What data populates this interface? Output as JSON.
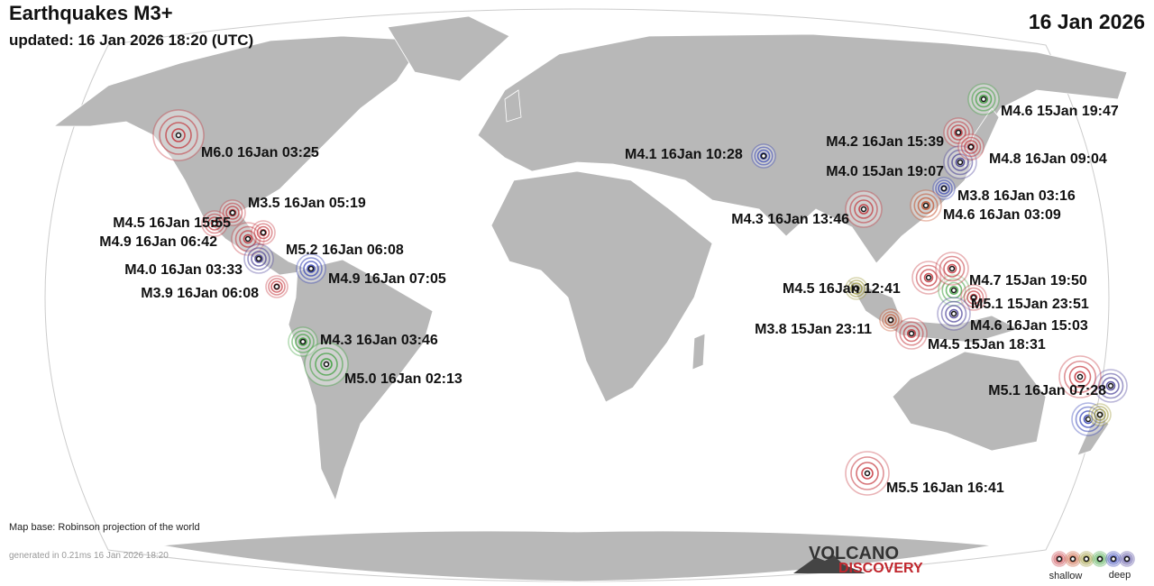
{
  "header": {
    "title": "Earthquakes M3+",
    "updated": "updated: 16 Jan 2026 18:20 (UTC)",
    "date": "16 Jan 2026"
  },
  "quakes": [
    {
      "label": "M6.0 16Jan 03:25",
      "color": "#c0262d"
    },
    {
      "label": "M3.5 16Jan 05:19",
      "color": "#c0262d"
    },
    {
      "label": "M4.5 16Jan 15:55",
      "color": "#c0262d"
    },
    {
      "label": "M4.9 16Jan 06:42",
      "color": "#c0262d"
    },
    {
      "label": "M5.2 16Jan 06:08",
      "color": "#3a2f8f"
    },
    {
      "label": "M4.9 16Jan 07:05",
      "color": "#1f2fb0"
    },
    {
      "label": "M4.0 16Jan 03:33",
      "color": "#c0262d"
    },
    {
      "label": "M3.9 16Jan 06:08",
      "color": "#c0262d"
    },
    {
      "label": "M4.3 16Jan 03:46",
      "color": "#2e9a2e"
    },
    {
      "label": "M5.0 16Jan 02:13",
      "color": "#2e9a2e"
    },
    {
      "label": "M4.1 16Jan 10:28",
      "color": "#1f2fb0"
    },
    {
      "label": "M4.3 16Jan 13:46",
      "color": "#c0262d"
    },
    {
      "label": "M4.2 16Jan 15:39",
      "color": "#c0262d"
    },
    {
      "label": "M4.8 16Jan 09:04",
      "color": "#3a2f8f"
    },
    {
      "label": "M4.0 15Jan 19:07",
      "color": "#c0262d"
    },
    {
      "label": "M3.8 16Jan 03:16",
      "color": "#1f2fb0"
    },
    {
      "label": "M4.6 16Jan 03:09",
      "color": "#c2451d"
    },
    {
      "label": "M4.6 15Jan 19:47",
      "color": "#2e9a2e"
    },
    {
      "label": "M4.7 15Jan 19:50",
      "color": "#c0262d"
    },
    {
      "label": "M4.5 16Jan 12:41",
      "color": "#8f8a1c"
    },
    {
      "label": "M5.1 15Jan 23:51",
      "color": "#c0262d"
    },
    {
      "label": "M4.6 16Jan 15:03",
      "color": "#3a2f8f"
    },
    {
      "label": "M3.8 15Jan 23:11",
      "color": "#c2451d"
    },
    {
      "label": "M4.5 15Jan 18:31",
      "color": "#c0262d"
    },
    {
      "label": "M5.1 16Jan 07:28",
      "color": "#c0262d"
    },
    {
      "label": "M5.5 16Jan 16:41",
      "color": "#c0262d"
    }
  ],
  "footer": {
    "map_base": "Map base: Robinson projection of the world",
    "generated": "generated in 0.21ms 16 Jan 2026 18:20"
  },
  "logo": {
    "line1": "VOLCANO",
    "line2": "DISCOVERY"
  },
  "legend": {
    "shallow": "shallow",
    "deep": "deep"
  }
}
